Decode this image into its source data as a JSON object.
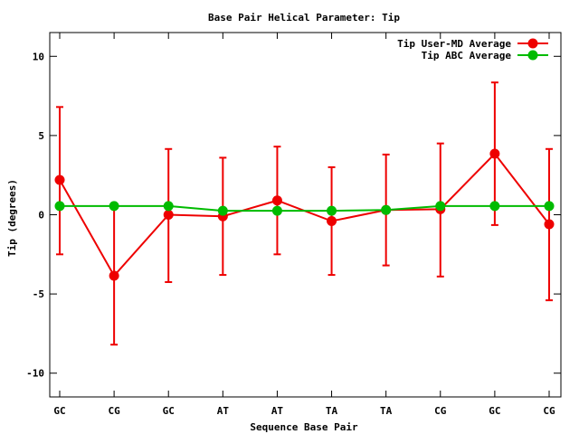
{
  "chart_data": {
    "type": "line",
    "title": "Base Pair Helical Parameter: Tip",
    "xlabel": "Sequence Base Pair",
    "ylabel": "Tip (degrees)",
    "categories": [
      "GC",
      "CG",
      "GC",
      "AT",
      "AT",
      "TA",
      "TA",
      "CG",
      "GC",
      "CG"
    ],
    "ylim": [
      -11.5,
      11.5
    ],
    "yticks": [
      -10,
      -5,
      0,
      5,
      10
    ],
    "ytick_labels": [
      "-10",
      "-5",
      "0",
      "5",
      "10"
    ],
    "legend_position": "top-right",
    "grid": false,
    "series": [
      {
        "name": "Tip User-MD Average",
        "color": "#ee0000",
        "values": [
          2.2,
          -3.85,
          0.0,
          -0.1,
          0.9,
          -0.4,
          0.3,
          0.35,
          3.85,
          -0.6
        ],
        "error_low": [
          -2.5,
          -8.2,
          -4.25,
          -3.8,
          -2.5,
          -3.8,
          -3.2,
          -3.9,
          -0.65,
          -5.4
        ],
        "error_high": [
          6.8,
          0.5,
          4.15,
          3.6,
          4.3,
          3.0,
          3.8,
          4.5,
          8.35,
          4.15
        ]
      },
      {
        "name": "Tip ABC Average",
        "color": "#00bb00",
        "values": [
          0.55,
          0.55,
          0.55,
          0.25,
          0.25,
          0.25,
          0.3,
          0.55,
          0.55,
          0.55
        ]
      }
    ]
  }
}
